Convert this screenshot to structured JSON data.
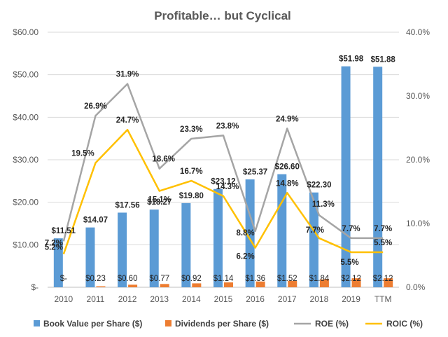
{
  "chart_data": {
    "type": "bar",
    "title": "Profitable… but Cyclical",
    "categories": [
      "2010",
      "2011",
      "2012",
      "2013",
      "2014",
      "2015",
      "2016",
      "2017",
      "2018",
      "2019",
      "TTM"
    ],
    "series": [
      {
        "name": "Book Value per Share ($)",
        "kind": "bar",
        "axis": "left",
        "color": "#5B9BD5",
        "values": [
          11.51,
          14.07,
          17.56,
          18.27,
          19.8,
          23.12,
          25.37,
          26.6,
          22.3,
          51.98,
          51.88
        ],
        "labels": [
          "$11.51",
          "$14.07",
          "$17.56",
          "$18.27",
          "$19.80",
          "$23.12",
          "$25.37",
          "$26.60",
          "$22.30",
          "$51.98",
          "$51.88"
        ]
      },
      {
        "name": "Dividends per Share ($)",
        "kind": "bar",
        "axis": "left",
        "color": "#ED7D31",
        "values": [
          0,
          0.23,
          0.6,
          0.77,
          0.92,
          1.14,
          1.36,
          1.52,
          1.84,
          2.12,
          2.12
        ],
        "labels": [
          "$-",
          "$0.23",
          "$0.60",
          "$0.77",
          "$0.92",
          "$1.14",
          "$1.36",
          "$1.52",
          "$1.84",
          "$2.12",
          "$2.12"
        ]
      },
      {
        "name": "ROE (%)",
        "kind": "line",
        "axis": "right",
        "color": "#A5A5A5",
        "values": [
          7.2,
          26.9,
          31.9,
          18.6,
          23.3,
          23.8,
          8.8,
          24.9,
          11.3,
          7.7,
          7.7
        ],
        "labels": [
          "7.2%",
          "26.9%",
          "31.9%",
          "18.6%",
          "23.3%",
          "23.8%",
          "8.8%",
          "24.9%",
          "11.3%",
          "7.7%",
          "7.7%"
        ]
      },
      {
        "name": "ROIC (%)",
        "kind": "line",
        "axis": "right",
        "color": "#FFC000",
        "values": [
          5.2,
          19.5,
          24.7,
          15.1,
          16.7,
          14.3,
          6.2,
          14.8,
          7.7,
          5.5,
          5.5
        ],
        "labels": [
          "5.2%",
          "19.5%",
          "24.7%",
          "15.1%",
          "16.7%",
          "14.3%",
          "6.2%",
          "14.8%",
          "7.7%",
          "5.5%",
          "5.5%"
        ]
      }
    ],
    "y_left": {
      "ylim": [
        0,
        60
      ],
      "ticks": [
        0,
        10,
        20,
        30,
        40,
        50,
        60
      ],
      "tick_labels": [
        "$-",
        "$10.00",
        "$20.00",
        "$30.00",
        "$40.00",
        "$50.00",
        "$60.00"
      ]
    },
    "y_right": {
      "ylim": [
        0,
        40
      ],
      "ticks": [
        0,
        10,
        20,
        30,
        40
      ],
      "tick_labels": [
        "0.0%",
        "10.0%",
        "20.0%",
        "30.0%",
        "40.0%"
      ]
    },
    "grid": true,
    "legend": "bottom"
  }
}
